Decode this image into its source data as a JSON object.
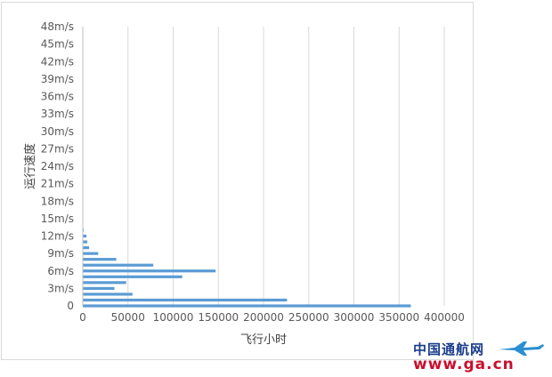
{
  "chart_data": {
    "type": "bar",
    "orientation": "horizontal",
    "title": "",
    "xlabel": "飞行小时",
    "ylabel": "运行速度",
    "xlim": [
      0,
      400000
    ],
    "x_ticks": [
      0,
      50000,
      100000,
      150000,
      200000,
      250000,
      300000,
      350000,
      400000
    ],
    "x_tick_labels": [
      "0",
      "50000",
      "100000",
      "150000",
      "200000",
      "250000",
      "300000",
      "350000",
      "400000"
    ],
    "y_tick_labels": [
      "0",
      "3m/s",
      "6m/s",
      "9m/s",
      "12m/s",
      "15m/s",
      "18m/s",
      "21m/s",
      "24m/s",
      "27m/s",
      "30m/s",
      "33m/s",
      "36m/s",
      "39m/s",
      "42m/s",
      "45m/s",
      "48m/s"
    ],
    "categories": [
      "0",
      "1",
      "2",
      "3",
      "4",
      "5",
      "6",
      "7",
      "8",
      "9",
      "10",
      "11",
      "12",
      "13"
    ],
    "values": [
      363000,
      226000,
      55000,
      35000,
      48000,
      110000,
      147000,
      78000,
      37000,
      17000,
      7000,
      5000,
      4000,
      1000
    ],
    "grid": "vertical",
    "legend": "none",
    "bar_color": "#5b9bd5"
  },
  "watermark": {
    "cn_text": "中国通航网",
    "url_text": "www.ga.cn"
  },
  "colors": {
    "bar": "#5b9bd5",
    "grid": "#d9d9d9",
    "text": "#595959"
  }
}
